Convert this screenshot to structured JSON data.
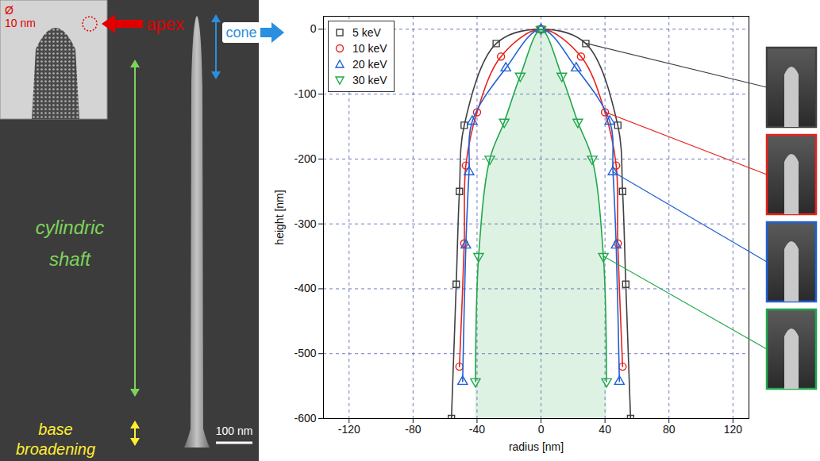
{
  "chart_data": {
    "type": "scatter",
    "x_label": "radius [nm]",
    "y_label": "height [nm]",
    "xlim": [
      -136,
      130
    ],
    "ylim": [
      -600,
      20
    ],
    "xticks": [
      -120,
      -80,
      -40,
      0,
      40,
      80,
      120
    ],
    "yticks": [
      0,
      -100,
      -200,
      -300,
      -400,
      -500,
      -600
    ],
    "grid": true,
    "legend": "top-left",
    "series": [
      {
        "name": "5 keV",
        "color": "#404040",
        "marker": "square",
        "line_style": "solid",
        "x": [
          -56,
          -53,
          -51,
          -48,
          -28,
          0,
          28,
          48,
          51,
          53,
          56
        ],
        "values": [
          -600,
          -393,
          -250,
          -148,
          -22,
          0,
          -22,
          -148,
          -250,
          -393,
          -600
        ]
      },
      {
        "name": "10 keV",
        "color": "#e8221b",
        "marker": "circle",
        "line_style": "solid",
        "x": [
          -51,
          -48,
          -47,
          -40,
          -25,
          0,
          25,
          40,
          47,
          48,
          51
        ],
        "values": [
          -520,
          -330,
          -210,
          -128,
          -42,
          0,
          -42,
          -128,
          -210,
          -330,
          -520
        ]
      },
      {
        "name": "20 keV",
        "color": "#1f5fd6",
        "marker": "triangle",
        "line_style": "solid",
        "x": [
          -49,
          -47,
          -45,
          -43,
          -22,
          0,
          22,
          43,
          45,
          47,
          49
        ],
        "values": [
          -543,
          -333,
          -220,
          -142,
          -60,
          0,
          -60,
          -142,
          -220,
          -333,
          -543
        ]
      },
      {
        "name": "30 keV",
        "color": "#1fa84a",
        "marker": "triangle-down",
        "line_style": "solid",
        "type": "area",
        "x": [
          -41,
          -39,
          -32,
          -23,
          -13,
          0,
          13,
          23,
          32,
          39,
          41
        ],
        "values": [
          -543,
          -350,
          -200,
          -143,
          -72,
          0,
          -72,
          -143,
          -200,
          -350,
          -543
        ]
      }
    ]
  },
  "left_panel": {
    "diameter_label": "Ø 10 nm",
    "apex_label": "apex",
    "cone_label": "cone",
    "shaft_label": "cylindric shaft",
    "base_label": "base broadening",
    "scale_bar": "100 nm"
  }
}
